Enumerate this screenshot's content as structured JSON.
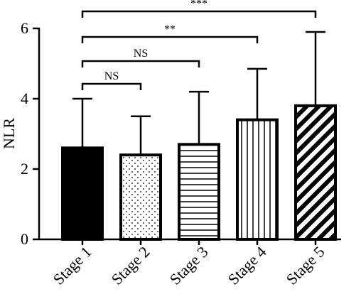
{
  "chart_data": {
    "type": "bar",
    "title": "",
    "xlabel": "",
    "ylabel": "NLR",
    "ylim": [
      0,
      6
    ],
    "yticks": [
      0,
      2,
      4,
      6
    ],
    "grid": false,
    "categories": [
      "Stage 1",
      "Stage 2",
      "Stage 3",
      "Stage 4",
      "Stage 5"
    ],
    "values": [
      2.6,
      2.4,
      2.7,
      3.4,
      3.8
    ],
    "error_upper": [
      4.0,
      3.5,
      4.2,
      4.85,
      5.9
    ],
    "fill_patterns": [
      "solid",
      "dots",
      "horizontal-lines",
      "vertical-lines",
      "diagonal-hatch"
    ],
    "comparisons": [
      {
        "from": "Stage 1",
        "to": "Stage 2",
        "label": "NS"
      },
      {
        "from": "Stage 1",
        "to": "Stage 3",
        "label": "NS"
      },
      {
        "from": "Stage 1",
        "to": "Stage 4",
        "label": "**"
      },
      {
        "from": "Stage 1",
        "to": "Stage 5",
        "label": "***"
      }
    ]
  }
}
